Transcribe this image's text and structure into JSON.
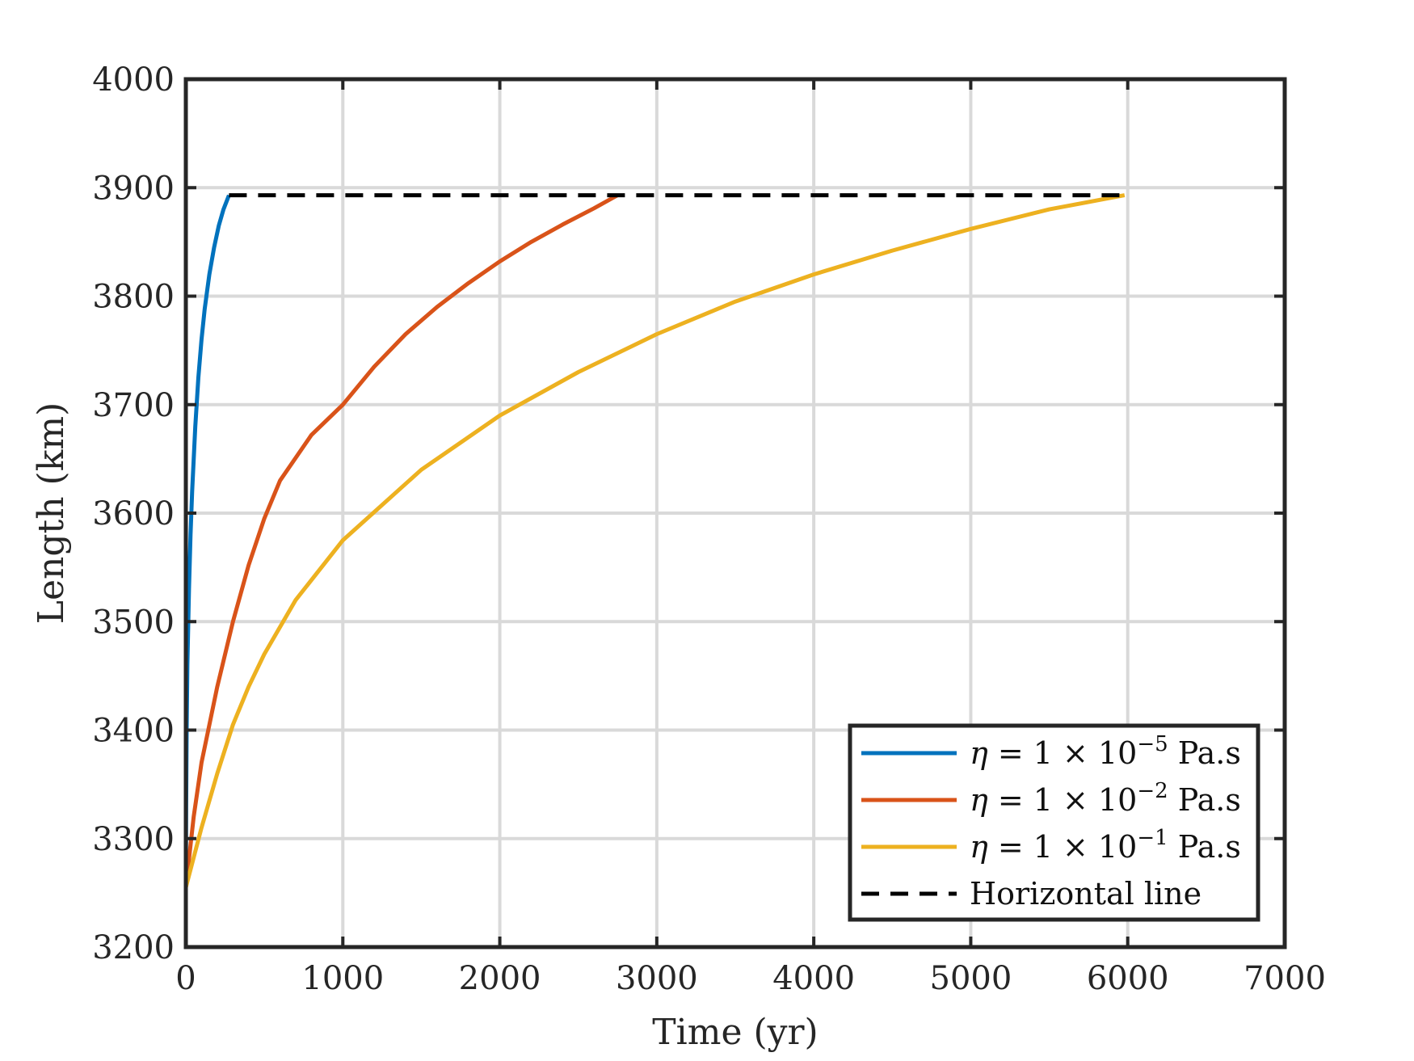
{
  "chart_data": {
    "type": "line",
    "title": "",
    "xlabel": "Time (yr)",
    "ylabel": "Length (km)",
    "xlim": [
      0,
      7000
    ],
    "ylim": [
      3200,
      4000
    ],
    "xticks": [
      0,
      1000,
      2000,
      3000,
      4000,
      5000,
      6000,
      7000
    ],
    "yticks": [
      3200,
      3300,
      3400,
      3500,
      3600,
      3700,
      3800,
      3900,
      4000
    ],
    "grid": true,
    "legend_position": "bottom-right",
    "series": [
      {
        "name": "η = 1 × 10⁻⁵ Pa.s",
        "legend_parts": {
          "var": "η",
          "mid": " = 1 × 10",
          "exp": "−5",
          "unit": " Pa.s"
        },
        "color": "#0072BD",
        "style": "solid",
        "x": [
          0,
          2,
          5,
          10,
          20,
          30,
          40,
          60,
          80,
          100,
          120,
          150,
          180,
          210,
          240,
          275
        ],
        "y": [
          3255,
          3330,
          3400,
          3460,
          3530,
          3580,
          3620,
          3680,
          3725,
          3760,
          3788,
          3820,
          3845,
          3865,
          3880,
          3893
        ]
      },
      {
        "name": "η = 1 × 10⁻² Pa.s",
        "legend_parts": {
          "var": "η",
          "mid": " = 1 × 10",
          "exp": "−2",
          "unit": " Pa.s"
        },
        "color": "#D95319",
        "style": "solid",
        "x": [
          0,
          50,
          100,
          200,
          300,
          400,
          500,
          600,
          800,
          1000,
          1200,
          1400,
          1600,
          1800,
          2000,
          2200,
          2400,
          2600,
          2750
        ],
        "y": [
          3255,
          3320,
          3370,
          3440,
          3500,
          3552,
          3595,
          3630,
          3672,
          3700,
          3735,
          3765,
          3790,
          3812,
          3832,
          3850,
          3866,
          3881,
          3893
        ]
      },
      {
        "name": "η = 1 × 10⁻¹ Pa.s",
        "legend_parts": {
          "var": "η",
          "mid": " = 1 × 10",
          "exp": "−1",
          "unit": " Pa.s"
        },
        "color": "#EDB120",
        "style": "solid",
        "x": [
          0,
          100,
          200,
          300,
          400,
          500,
          700,
          1000,
          1500,
          2000,
          2500,
          3000,
          3500,
          4000,
          4500,
          5000,
          5500,
          5980
        ],
        "y": [
          3255,
          3310,
          3360,
          3405,
          3440,
          3470,
          3520,
          3575,
          3640,
          3690,
          3730,
          3765,
          3795,
          3820,
          3842,
          3862,
          3880,
          3893
        ]
      },
      {
        "name": "Horizontal line",
        "legend_parts": {
          "var": "",
          "mid": "Horizontal line",
          "exp": "",
          "unit": ""
        },
        "color": "#000000",
        "style": "dashed",
        "x": [
          275,
          5980
        ],
        "y": [
          3893,
          3893
        ]
      }
    ]
  }
}
